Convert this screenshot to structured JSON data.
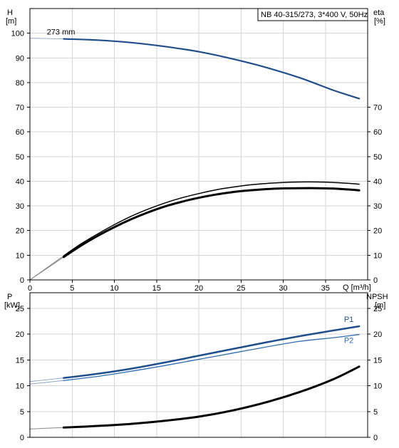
{
  "chart_data": [
    {
      "type": "line",
      "title": "NB 40-315/273, 3*400 V, 50Hz",
      "xlabel": "Q [m³/h]",
      "ylabel_left": [
        "H",
        "[m]"
      ],
      "ylabel_right": [
        "eta",
        "[%]"
      ],
      "xlim": [
        0,
        40
      ],
      "ylim_left": [
        0,
        110
      ],
      "ylim_right": [
        0,
        110
      ],
      "x_ticks": [
        0,
        5,
        10,
        15,
        20,
        25,
        30,
        35
      ],
      "y_ticks_left": [
        0,
        10,
        20,
        30,
        40,
        50,
        60,
        70,
        80,
        90,
        100
      ],
      "y_ticks_right": [
        0,
        10,
        20,
        30,
        40,
        50,
        60,
        70
      ],
      "grid": true,
      "annotations": [
        {
          "text": "273 mm",
          "x": 2,
          "y": 99.5
        }
      ],
      "series": [
        {
          "name": "273 mm",
          "axis": "left",
          "color": "#1f4e8c",
          "x": [
            0,
            4,
            8,
            12,
            16,
            20,
            24,
            28,
            32,
            36,
            39
          ],
          "y": [
            98,
            97.7,
            97.2,
            96.2,
            94.6,
            92.5,
            89.6,
            86.1,
            81.9,
            76.8,
            73.5
          ],
          "thin_until": 4
        },
        {
          "axis": "right",
          "color": "#000000",
          "x": [
            0,
            4,
            6,
            8,
            10,
            12,
            14,
            16,
            18,
            20,
            22,
            24,
            26,
            28,
            30,
            32,
            34,
            36,
            38,
            39
          ],
          "y": [
            0,
            9.8,
            14.5,
            18.6,
            22.4,
            25.8,
            28.7,
            31.2,
            33.3,
            35.0,
            36.5,
            37.6,
            38.5,
            39.1,
            39.5,
            39.7,
            39.7,
            39.5,
            39.1,
            38.8
          ],
          "thin_until": 4,
          "width": 1.5
        },
        {
          "axis": "right",
          "color": "#000000",
          "x": [
            0,
            4,
            6,
            8,
            10,
            12,
            14,
            16,
            18,
            20,
            22,
            24,
            26,
            28,
            30,
            32,
            34,
            36,
            38,
            39
          ],
          "y": [
            0,
            9.3,
            13.8,
            17.8,
            21.4,
            24.6,
            27.4,
            29.8,
            31.7,
            33.3,
            34.6,
            35.6,
            36.3,
            36.8,
            37.1,
            37.2,
            37.2,
            37.0,
            36.6,
            36.3
          ],
          "thin_until": 4,
          "width": 3
        }
      ]
    },
    {
      "type": "line",
      "xlabel": "",
      "ylabel_left": [
        "P",
        "[kW]"
      ],
      "ylabel_right": [
        "NPSH",
        "[m]"
      ],
      "xlim": [
        0,
        40
      ],
      "ylim_left": [
        0,
        28
      ],
      "ylim_right": [
        0,
        28
      ],
      "y_ticks_left": [
        0,
        5,
        10,
        15,
        20,
        25
      ],
      "y_ticks_right": [
        0,
        5,
        10,
        15,
        20,
        25
      ],
      "grid": true,
      "series": [
        {
          "name": "P1",
          "axis": "left",
          "color": "#1f4e8c",
          "x": [
            0,
            4,
            8,
            12,
            16,
            20,
            24,
            28,
            32,
            36,
            39
          ],
          "y": [
            10.8,
            11.5,
            12.3,
            13.3,
            14.5,
            15.8,
            17.1,
            18.4,
            19.6,
            20.7,
            21.5
          ],
          "thin_until": 4,
          "width": 2.5
        },
        {
          "name": "P2",
          "axis": "left",
          "color": "#2c6db5",
          "x": [
            0,
            4,
            8,
            12,
            16,
            20,
            24,
            28,
            32,
            36,
            39
          ],
          "y": [
            10.3,
            11.0,
            11.8,
            12.8,
            13.9,
            15.1,
            16.3,
            17.5,
            18.6,
            19.3,
            19.9
          ],
          "thin_until": 4,
          "width": 1.3
        },
        {
          "name": "NPSH",
          "axis": "right",
          "color": "#000000",
          "x": [
            0,
            4,
            8,
            12,
            16,
            20,
            24,
            28,
            32,
            36,
            39
          ],
          "y": [
            1.6,
            1.9,
            2.2,
            2.6,
            3.2,
            4.0,
            5.2,
            6.8,
            8.8,
            11.3,
            13.7
          ],
          "thin_until": 4,
          "width": 3
        }
      ]
    }
  ]
}
